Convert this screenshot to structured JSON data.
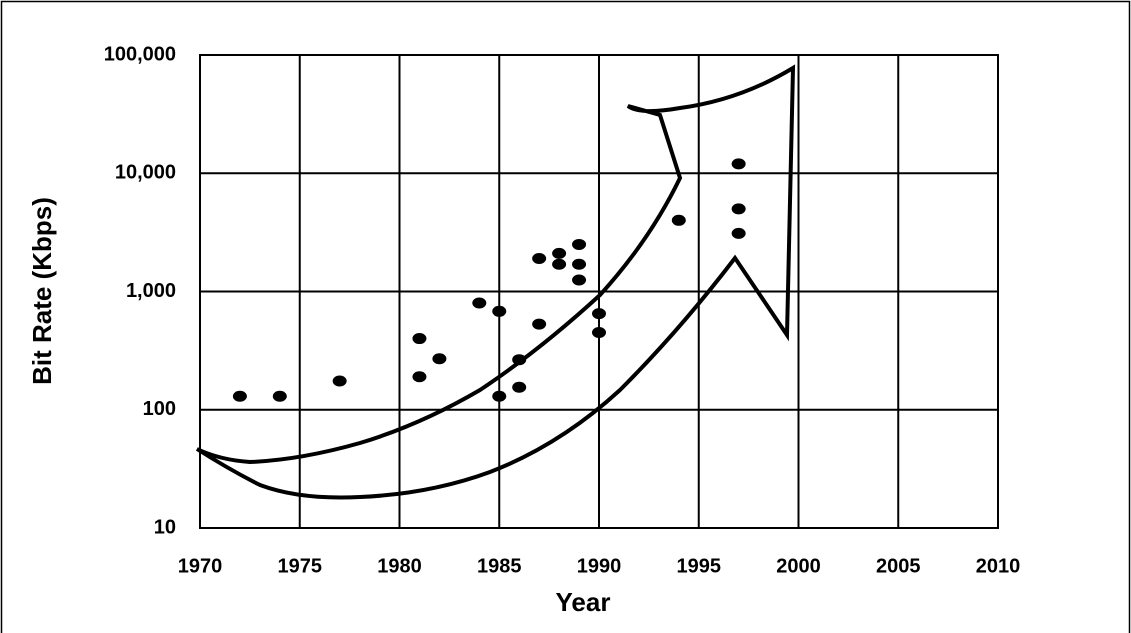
{
  "chart_data": {
    "type": "scatter",
    "x_label": "Year",
    "y_label": "Bit Rate (Kbps)",
    "x": [
      1972,
      1974,
      1977,
      1981,
      1981,
      1982,
      1984,
      1985,
      1985,
      1986,
      1986,
      1987,
      1987,
      1988,
      1988,
      1989,
      1989,
      1989,
      1990,
      1990,
      1994,
      1997,
      1997,
      1997
    ],
    "values": [
      130,
      130,
      175,
      400,
      190,
      270,
      800,
      680,
      130,
      265,
      155,
      1900,
      530,
      2100,
      1700,
      2500,
      1700,
      1250,
      650,
      450,
      4000,
      12000,
      5000,
      3100
    ],
    "color": "#000000",
    "xlim": [
      1970,
      2010
    ],
    "xticks": [
      1970,
      1975,
      1980,
      1985,
      1990,
      1995,
      2000,
      2005,
      2010
    ],
    "ylim": [
      10,
      100000
    ],
    "yscale": "log",
    "yticks": [
      10,
      100,
      {
        "value": 1000,
        "label": "1,000"
      },
      {
        "value": 10000,
        "label": "10,000"
      },
      {
        "value": 100000,
        "label": "100,000"
      }
    ],
    "grid": true
  }
}
